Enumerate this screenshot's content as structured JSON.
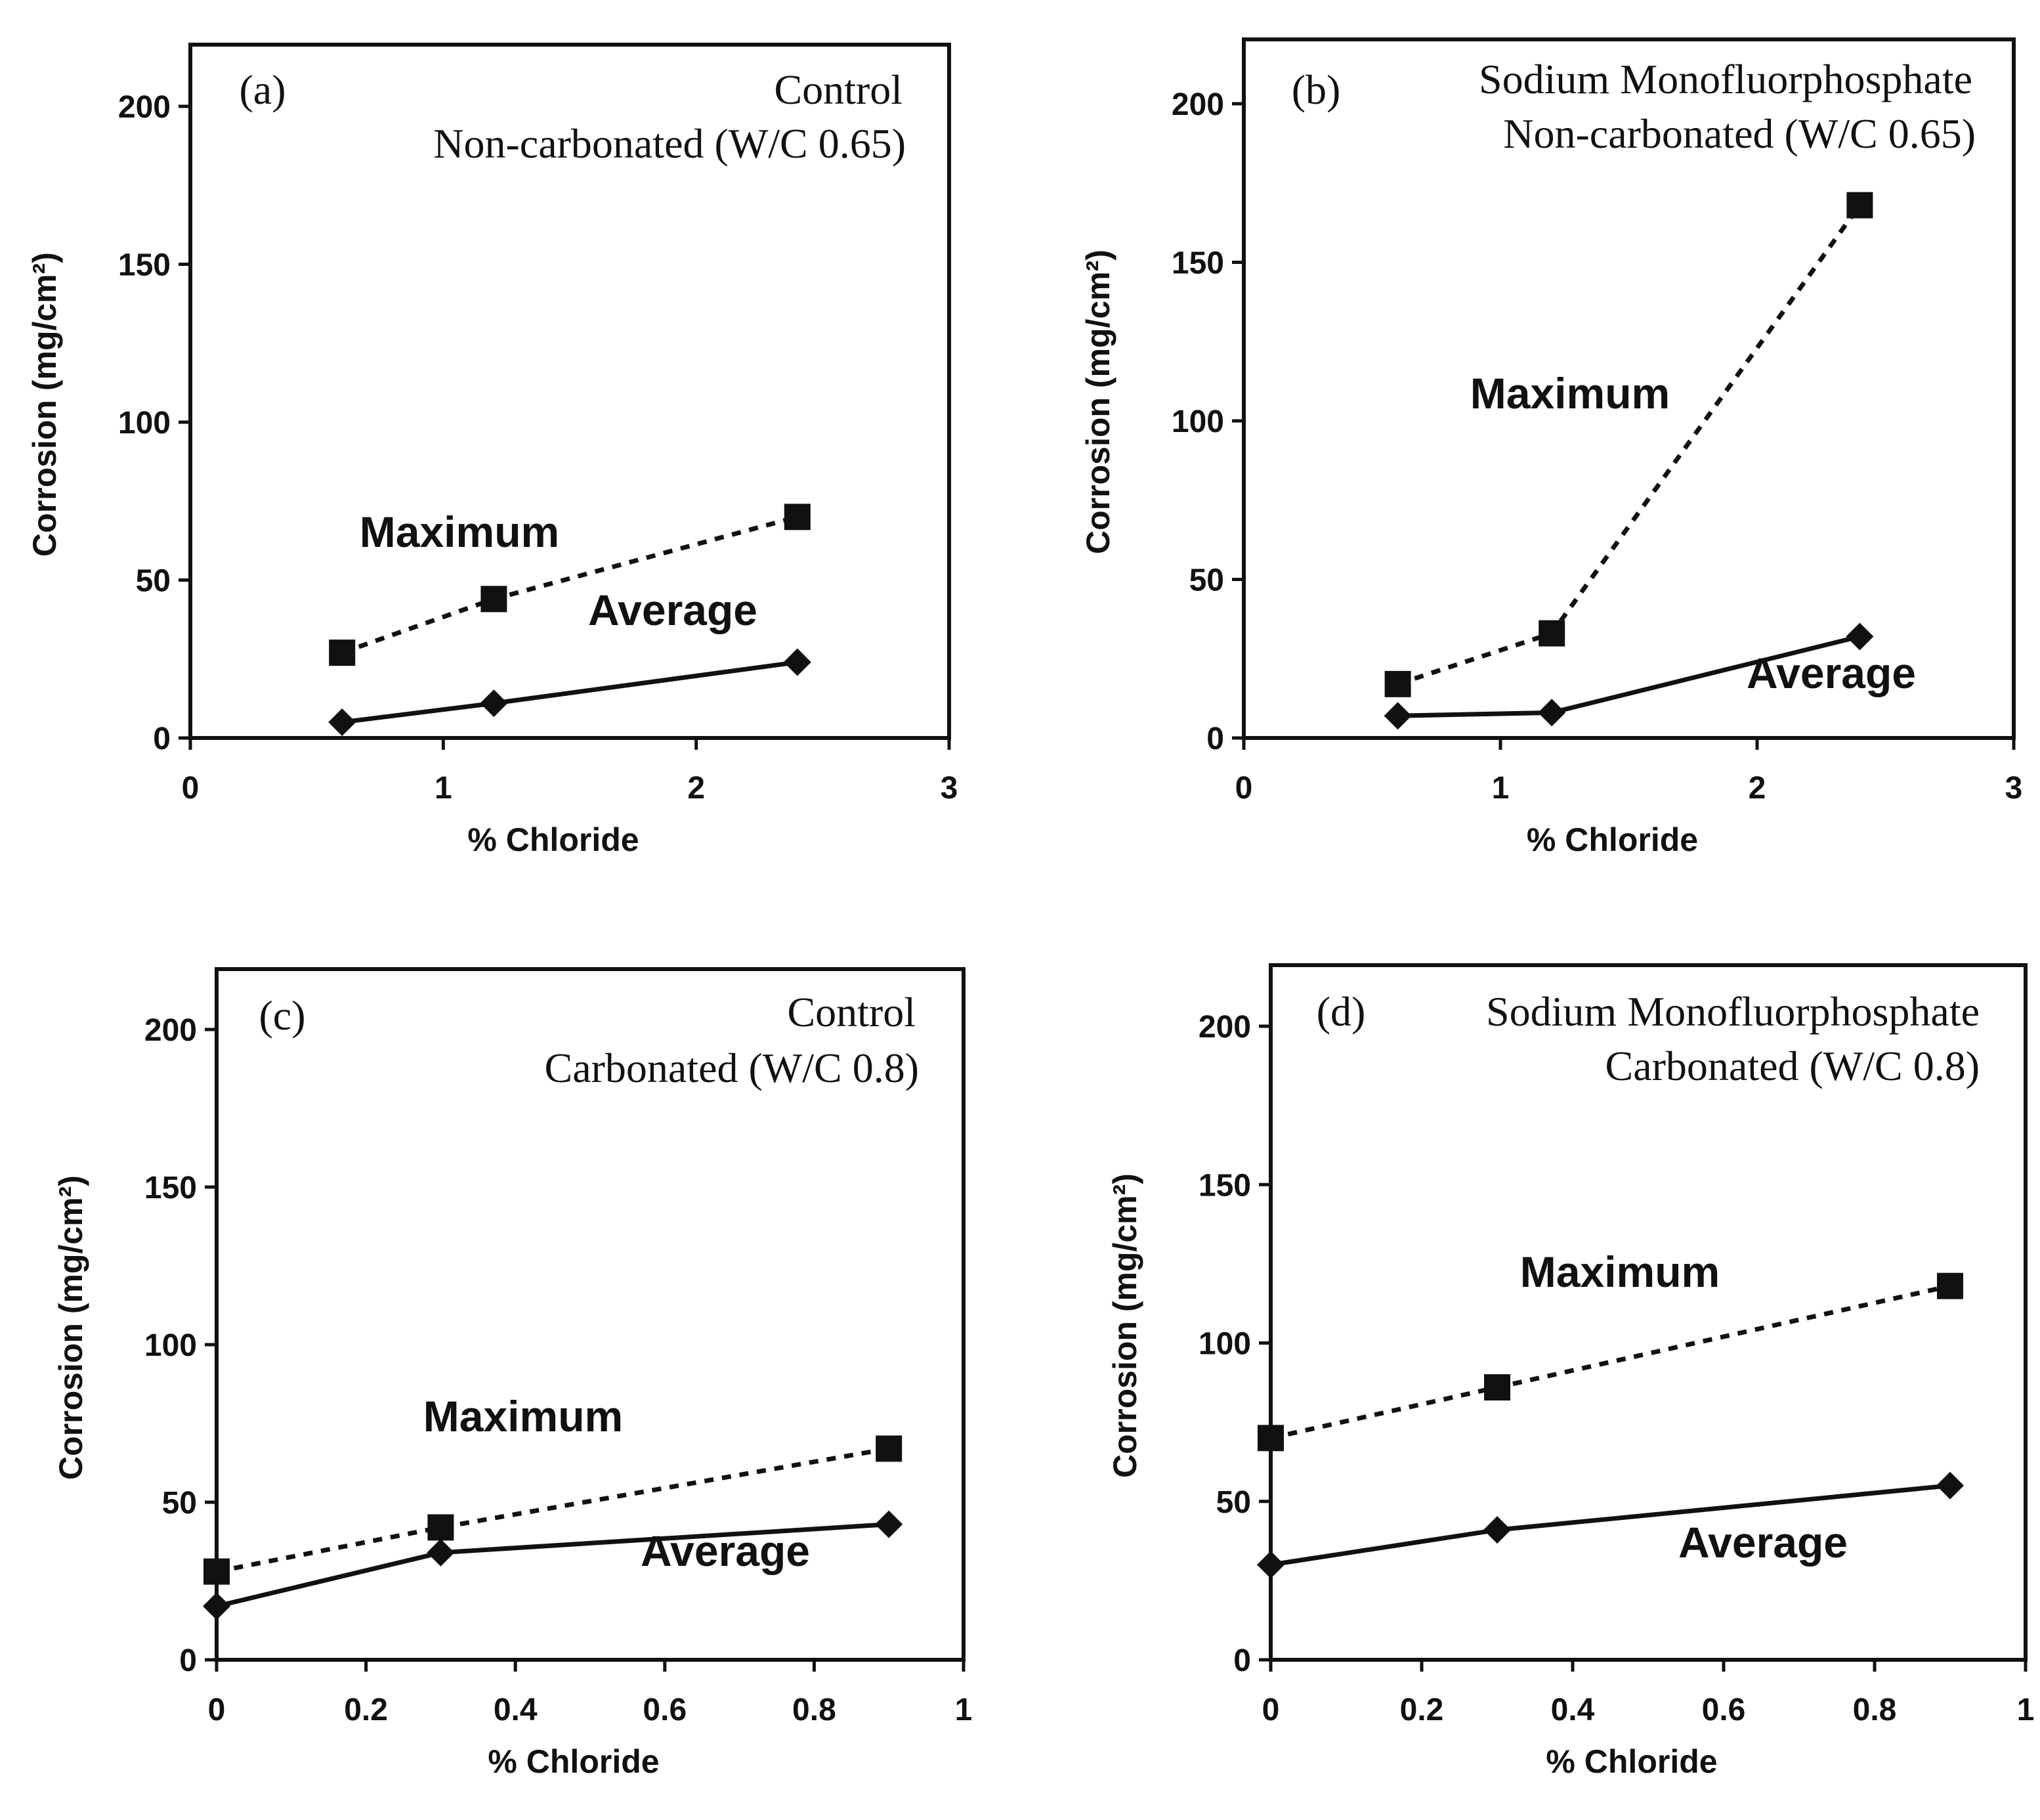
{
  "panels": [
    {
      "id": "a",
      "tag": "(a)",
      "title_lines": [
        "Control",
        "Non-carbonated (W/C 0.65)"
      ],
      "xlabel": "% Chloride",
      "ylabel": "Corrosion (mg/cm²)",
      "xticks": [
        "0",
        "1",
        "2",
        "3"
      ],
      "yticks": [
        "0",
        "50",
        "100",
        "150",
        "200"
      ],
      "max_label": "Maximum",
      "avg_label": "Average"
    },
    {
      "id": "b",
      "tag": "(b)",
      "title_lines": [
        "Sodium Monofluorphosphate",
        "Non-carbonated (W/C 0.65)"
      ],
      "xlabel": "% Chloride",
      "ylabel": "Corrosion (mg/cm²)",
      "xticks": [
        "0",
        "1",
        "2",
        "3"
      ],
      "yticks": [
        "0",
        "50",
        "100",
        "150",
        "200"
      ],
      "max_label": "Maximum",
      "avg_label": "Average"
    },
    {
      "id": "c",
      "tag": "(c)",
      "title_lines": [
        "Control",
        "Carbonated (W/C 0.8)"
      ],
      "xlabel": "% Chloride",
      "ylabel": "Corrosion (mg/cm²)",
      "xticks": [
        "0",
        "0.2",
        "0.4",
        "0.6",
        "0.8",
        "1"
      ],
      "yticks": [
        "0",
        "50",
        "100",
        "150",
        "200"
      ],
      "max_label": "Maximum",
      "avg_label": "Average"
    },
    {
      "id": "d",
      "tag": "(d)",
      "title_lines": [
        "Sodium Monofluorphosphate",
        "Carbonated (W/C 0.8)"
      ],
      "xlabel": "% Chloride",
      "ylabel": "Corrosion (mg/cm²)",
      "xticks": [
        "0",
        "0.2",
        "0.4",
        "0.6",
        "0.8",
        "1"
      ],
      "yticks": [
        "0",
        "50",
        "100",
        "150",
        "200"
      ],
      "max_label": "Maximum",
      "avg_label": "Average"
    }
  ],
  "chart_data": [
    {
      "type": "line",
      "panel": "(a)",
      "title": "Control Non-carbonated (W/C 0.65)",
      "xlabel": "% Chloride",
      "ylabel": "Corrosion (mg/cm²)",
      "xlim": [
        0,
        3
      ],
      "ylim": [
        0,
        220
      ],
      "x": [
        0.6,
        1.2,
        2.4
      ],
      "series": [
        {
          "name": "Maximum",
          "style": "dotted",
          "marker": "square",
          "values": [
            27,
            44,
            70
          ]
        },
        {
          "name": "Average",
          "style": "solid",
          "marker": "diamond",
          "values": [
            5,
            11,
            24
          ]
        }
      ]
    },
    {
      "type": "line",
      "panel": "(b)",
      "title": "Sodium Monofluorphosphate Non-carbonated (W/C 0.65)",
      "xlabel": "% Chloride",
      "ylabel": "Corrosion (mg/cm²)",
      "xlim": [
        0,
        3
      ],
      "ylim": [
        0,
        220
      ],
      "x": [
        0.6,
        1.2,
        2.4
      ],
      "series": [
        {
          "name": "Maximum",
          "style": "dotted",
          "marker": "square",
          "values": [
            17,
            33,
            168
          ]
        },
        {
          "name": "Average",
          "style": "solid",
          "marker": "diamond",
          "values": [
            7,
            8,
            32
          ]
        }
      ]
    },
    {
      "type": "line",
      "panel": "(c)",
      "title": "Control Carbonated (W/C 0.8)",
      "xlabel": "% Chloride",
      "ylabel": "Corrosion (mg/cm²)",
      "xlim": [
        0,
        1
      ],
      "ylim": [
        0,
        220
      ],
      "x": [
        0,
        0.3,
        0.9
      ],
      "series": [
        {
          "name": "Maximum",
          "style": "dotted",
          "marker": "square",
          "values": [
            28,
            42,
            67
          ]
        },
        {
          "name": "Average",
          "style": "solid",
          "marker": "diamond",
          "values": [
            17,
            34,
            43
          ]
        }
      ]
    },
    {
      "type": "line",
      "panel": "(d)",
      "title": "Sodium Monofluorphosphate Carbonated (W/C 0.8)",
      "xlabel": "% Chloride",
      "ylabel": "Corrosion (mg/cm²)",
      "xlim": [
        0,
        1
      ],
      "ylim": [
        0,
        220
      ],
      "x": [
        0,
        0.3,
        0.9
      ],
      "series": [
        {
          "name": "Maximum",
          "style": "dotted",
          "marker": "square",
          "values": [
            70,
            86,
            118
          ]
        },
        {
          "name": "Average",
          "style": "solid",
          "marker": "diamond",
          "values": [
            30,
            41,
            55
          ]
        }
      ]
    }
  ]
}
